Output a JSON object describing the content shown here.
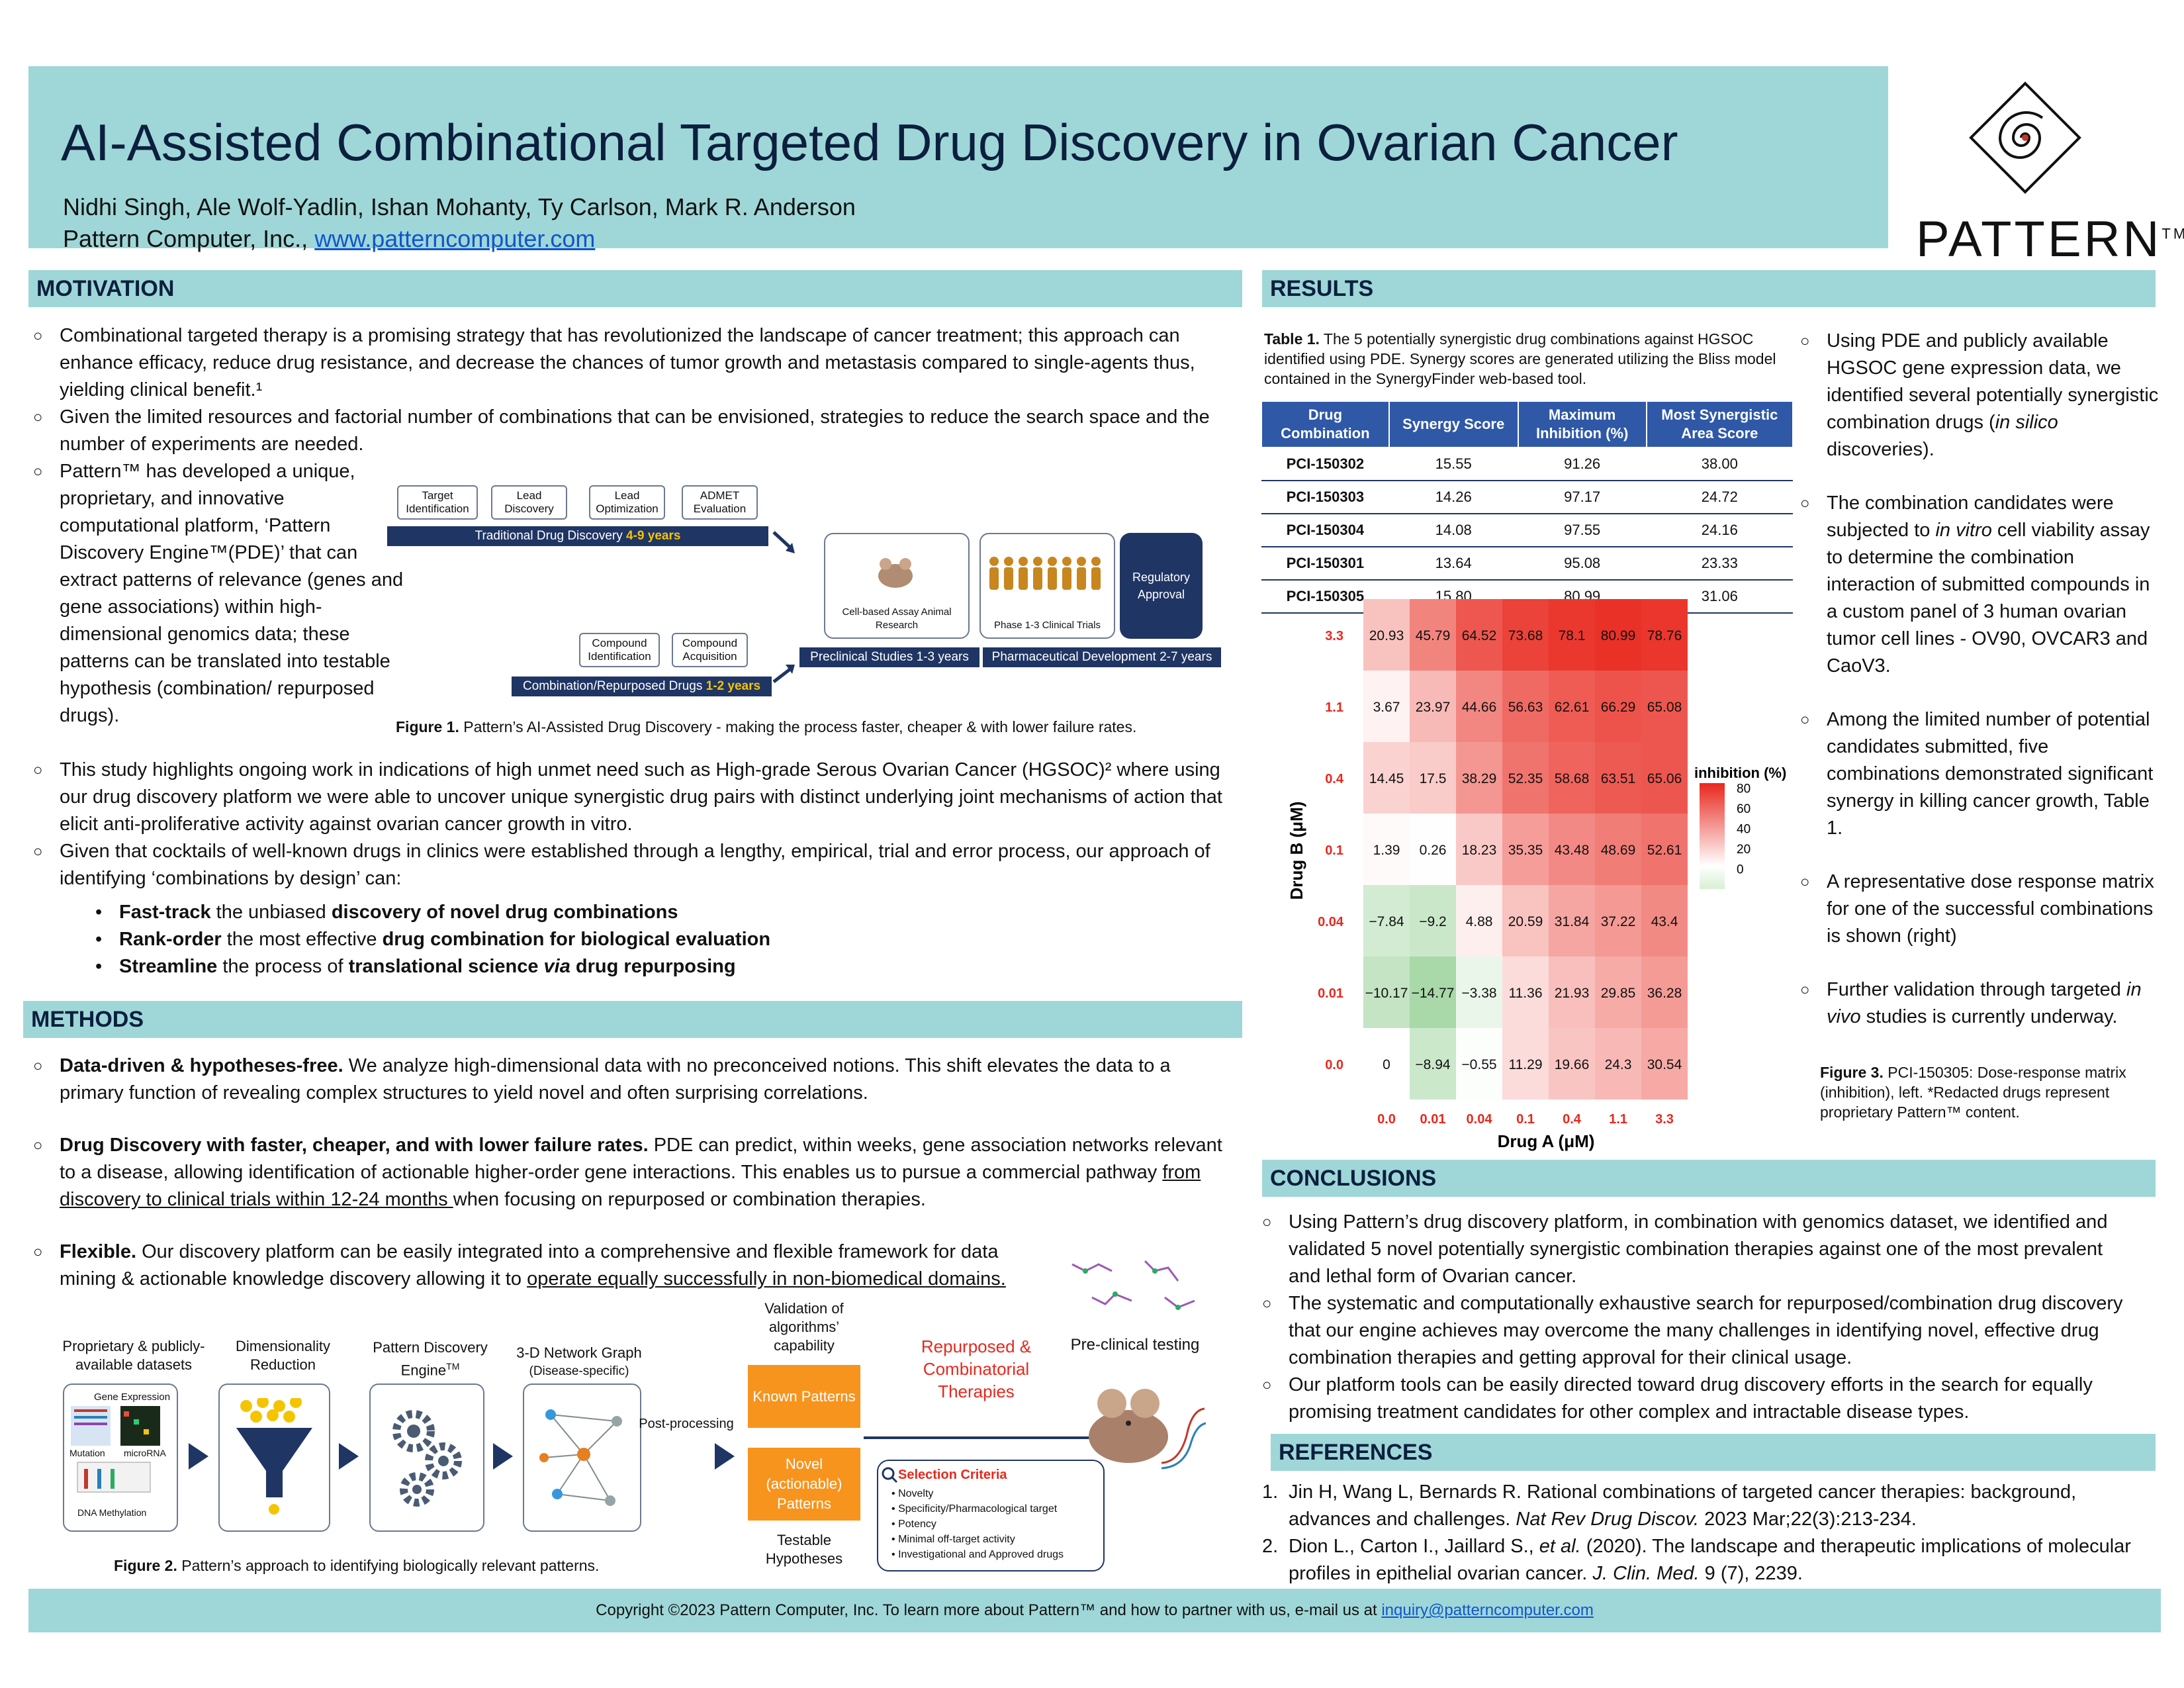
{
  "header": {
    "title": "AI-Assisted Combinational Targeted Drug Discovery in Ovarian Cancer",
    "authors": "Nidhi Singh, Ale Wolf-Yadlin, Ishan Mohanty, Ty Carlson, Mark R. Anderson",
    "affiliation": "Pattern Computer, Inc.,",
    "website": "www.patterncomputer.com",
    "logo_text": "PATTERN",
    "logo_tm": "TM"
  },
  "motivation": {
    "heading": "MOTIVATION",
    "p1": "Combinational targeted therapy is a promising strategy that has revolutionized the landscape of cancer treatment; this approach can enhance efficacy, reduce drug resistance, and decrease the chances of tumor growth and metastasis compared to single-agents thus, yielding clinical benefit.¹",
    "p2": "Given the limited resources and factorial number of combinations that can be envisioned, strategies to reduce the search space and the number of experiments are needed.",
    "p3": "Pattern™ has developed a unique, proprietary, and innovative computational platform, ‘Pattern Discovery Engine™(PDE)’ that can extract patterns of relevance (genes and gene associations) within high-dimensional genomics data; these patterns can be translated into testable hypothesis (combination/ repurposed drugs).",
    "p4": "This study highlights ongoing work in indications of high unmet need such as High-grade Serous Ovarian Cancer (HGSOC)² where using our drug discovery platform we were able to uncover unique synergistic drug pairs with distinct underlying joint mechanisms of action that elicit anti-proliferative activity against ovarian cancer growth in vitro.",
    "p5": " Given that cocktails of well-known drugs in clinics were established through a lengthy, empirical, trial and error process, our approach of identifying ‘combinations by design’ can:",
    "b1a": "Fast-track",
    "b1b": " the unbiased ",
    "b1c": "discovery of novel drug combinations",
    "b2a": "Rank-order",
    "b2b": " the most effective ",
    "b2c": "drug combination for biological evaluation",
    "b3a": "Streamline",
    "b3b": " the process of ",
    "b3c": "translational science ",
    "b3d": "via",
    "b3e": " drug repurposing"
  },
  "fig1": {
    "boxes": [
      "Target Identification",
      "Lead Discovery",
      "Lead Optimization",
      "ADMET Evaluation",
      "Compound Identification",
      "Compound Acquisition"
    ],
    "trad": "Traditional Drug Discovery ",
    "trad_years": "4-9 years",
    "comb": "Combination/Repurposed Drugs ",
    "comb_years": "1-2 years",
    "cell": "Cell-based Assay Animal Research",
    "phase": "Phase 1-3 Clinical Trials",
    "reg": "Regulatory Approval",
    "pre": "Preclinical Studies 1-3 years",
    "pharma": "Pharmaceutical Development 2-7 years",
    "caption_bold": "Figure 1.",
    "caption": " Pattern’s AI-Assisted Drug Discovery - making the process faster, cheaper & with lower failure rates."
  },
  "methods": {
    "heading": "METHODS",
    "m1_bold": "Data-driven & hypotheses-free.",
    "m1": " We analyze high-dimensional data with no preconceived notions. This shift elevates the data to a primary function of revealing complex structures to yield novel and often surprising correlations.",
    "m2_bold": "Drug Discovery with faster, cheaper, and with lower failure rates.",
    "m2a": " PDE can predict, within weeks, gene association networks relevant to a disease, allowing identification of actionable higher-order gene interactions. This enables us to pursue a commercial pathway ",
    "m2_u": "from discovery to clinical trials within 12-24 months ",
    "m2b": "when focusing on repurposed or combination therapies.",
    "m3_bold": "Flexible.",
    "m3a": " Our discovery platform can be easily integrated into a comprehensive and flexible framework for data mining & actionable  knowledge discovery allowing it to ",
    "m3_u": "operate equally successfully in non-biomedical domains."
  },
  "fig2": {
    "l1": "Proprietary & publicly-available datasets",
    "l2": "Dimensionality Reduction",
    "l3": "Pattern Discovery Engine",
    "l3_tm": "TM",
    "l4": "3-D Network Graph",
    "l4b": "(Disease-specific)",
    "ge": "Gene Expression",
    "mut": "Mutation",
    "mirna": "microRNA",
    "dna": "DNA Methylation",
    "post": "Post-processing",
    "val": "Validation of algorithms’ capability",
    "known": "Known Patterns",
    "novel": "Novel (actionable) Patterns",
    "test": "Testable Hypotheses",
    "rep": "Repurposed & Combinatorial Therapies",
    "pre": "Pre-clinical testing",
    "sel_title": "Selection Criteria",
    "sel": [
      "Novelty",
      "Specificity/Pharmacological target",
      "Potency",
      "Minimal off-target activity",
      "Investigational and Approved drugs"
    ],
    "caption_bold": "Figure 2.",
    "caption": " Pattern’s approach to identifying biologically relevant patterns."
  },
  "results": {
    "heading": "RESULTS",
    "t_cap_bold": "Table 1.",
    "t_cap": " The 5 potentially synergistic drug combinations against HGSOC identified using PDE. Synergy scores are generated utilizing the Bliss model contained in the SynergyFinder web-based tool.",
    "cols": [
      "Drug Combination",
      "Synergy Score",
      "Maximum Inhibition (%)",
      "Most Synergistic Area Score"
    ],
    "rows": [
      [
        "PCI-150302",
        "15.55",
        "91.26",
        "38.00"
      ],
      [
        "PCI-150303",
        "14.26",
        "97.17",
        "24.72"
      ],
      [
        "PCI-150304",
        "14.08",
        "97.55",
        "24.16"
      ],
      [
        "PCI-150301",
        "13.64",
        "95.08",
        "23.33"
      ],
      [
        "PCI-150305",
        "15.80",
        "80.99",
        "31.06"
      ]
    ],
    "r1a": "Using PDE and publicly available HGSOC gene expression data, we identified several potentially synergistic combination drugs (",
    "r1i": "in silico",
    "r1b": " discoveries).",
    "r2a": "The combination candidates were subjected to ",
    "r2i": "in vitro",
    "r2b": " cell viability assay to determine the combination interaction of submitted compounds in a custom panel of 3 human ovarian tumor cell lines - OV90, OVCAR3 and CaoV3.",
    "r3": "Among the limited number of potential candidates submitted, five combinations demonstrated significant synergy in killing cancer growth, Table 1.",
    "r4": "A representative dose response matrix for one of the successful combinations is shown (right)",
    "r5a": "Further validation through targeted ",
    "r5i": "in vivo",
    "r5b": " studies is currently underway.",
    "f3_bold": "Figure 3.",
    "f3": " PCI-150305: Dose-response matrix (inhibition), left. *Redacted  drugs represent proprietary Pattern™ content."
  },
  "chart_data": {
    "type": "heatmap",
    "xlabel": "Drug A (μM)",
    "ylabel": "Drug B (μM)",
    "x": [
      "0.0",
      "0.01",
      "0.04",
      "0.1",
      "0.4",
      "1.1",
      "3.3"
    ],
    "y": [
      "3.3",
      "1.1",
      "0.4",
      "0.1",
      "0.04",
      "0.01",
      "0.0"
    ],
    "values": [
      [
        20.93,
        45.79,
        64.52,
        73.68,
        78.1,
        80.99,
        78.76
      ],
      [
        3.67,
        23.97,
        44.66,
        56.63,
        62.61,
        66.29,
        65.08
      ],
      [
        14.45,
        17.5,
        38.29,
        52.35,
        58.68,
        63.51,
        65.06
      ],
      [
        1.39,
        0.26,
        18.23,
        35.35,
        43.48,
        48.69,
        52.61
      ],
      [
        -7.84,
        -9.2,
        4.88,
        20.59,
        31.84,
        37.22,
        43.4
      ],
      [
        -10.17,
        -14.77,
        -3.38,
        11.36,
        21.93,
        29.85,
        36.28
      ],
      [
        0,
        -8.94,
        -0.55,
        11.29,
        19.66,
        24.3,
        30.54
      ]
    ],
    "labels": [
      [
        "20.93",
        "45.79",
        "64.52",
        "73.68",
        "78.1",
        "80.99",
        "78.76"
      ],
      [
        "3.67",
        "23.97",
        "44.66",
        "56.63",
        "62.61",
        "66.29",
        "65.08"
      ],
      [
        "14.45",
        "17.5",
        "38.29",
        "52.35",
        "58.68",
        "63.51",
        "65.06"
      ],
      [
        "1.39",
        "0.26",
        "18.23",
        "35.35",
        "43.48",
        "48.69",
        "52.61"
      ],
      [
        "−7.84",
        "−9.2",
        "4.88",
        "20.59",
        "31.84",
        "37.22",
        "43.4"
      ],
      [
        "−10.17",
        "−14.77",
        "−3.38",
        "11.36",
        "21.93",
        "29.85",
        "36.28"
      ],
      [
        "0",
        "−8.94",
        "−0.55",
        "11.29",
        "19.66",
        "24.3",
        "30.54"
      ]
    ],
    "colorbar_title": "inhibition (%)",
    "colorbar_ticks": [
      "80",
      "60",
      "40",
      "20",
      "0"
    ],
    "color_low": "#2ca02c",
    "color_mid": "#ffffff",
    "color_high": "#e8281e",
    "zlim": [
      -20,
      85
    ]
  },
  "conclusions": {
    "heading": "CONCLUSIONS",
    "c1": "Using Pattern’s drug discovery platform, in combination with genomics dataset, we identified and validated 5 novel potentially synergistic combination therapies against one of the most prevalent and lethal form of Ovarian cancer.",
    "c2": "The systematic and computationally exhaustive search for repurposed/combination drug discovery that our engine achieves may overcome the many challenges in identifying novel, effective drug combination therapies and getting approval for their clinical usage.",
    "c3": "Our platform tools can be easily directed toward drug discovery efforts in the search for equally promising treatment candidates for other complex and intractable disease types."
  },
  "references": {
    "heading": "REFERENCES",
    "r1a": "Jin H, Wang L, Bernards R. Rational combinations of targeted cancer therapies: background, advances and challenges. ",
    "r1i": "Nat Rev Drug Discov.",
    "r1b": " 2023 Mar;22(3):213-234.",
    "r2a": "Dion L., Carton I., Jaillard S., ",
    "r2i": "et al.",
    "r2b": " (2020). The landscape and therapeutic implications of molecular profiles in epithelial ovarian cancer. ",
    "r2j": "J. Clin. Med.",
    "r2c": " 9 (7), 2239."
  },
  "footer": {
    "text": "Copyright ©2023 Pattern Computer, Inc.   To learn more about Pattern™ and how to partner with us, e-mail us at ",
    "email": "inquiry@patterncomputer.com"
  },
  "colors": {
    "banner": "#9fd7d8",
    "navy": "#1f3563",
    "table_header": "#2f58a7",
    "orange": "#f7941d",
    "red_label": "#e8281e"
  },
  "bullet_glyph": "○",
  "dot_glyph": "•"
}
